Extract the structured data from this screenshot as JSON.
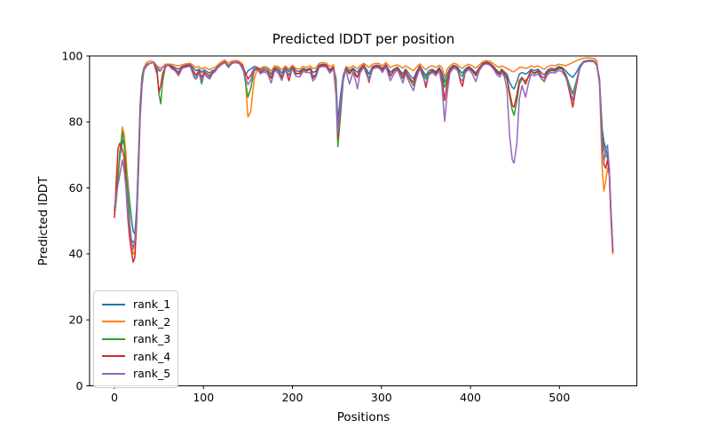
{
  "figure": {
    "title": "Predicted lDDT per position",
    "xlabel": "Positions",
    "ylabel": "Predicted lDDT"
  },
  "chart_data": {
    "type": "line",
    "title": "Predicted lDDT per position",
    "xlabel": "Positions",
    "ylabel": "Predicted lDDT",
    "xlim": [
      -28,
      587
    ],
    "ylim": [
      0,
      100
    ],
    "xticks": [
      0,
      100,
      200,
      300,
      400,
      500
    ],
    "yticks": [
      0,
      20,
      40,
      60,
      80,
      100
    ],
    "grid": false,
    "legend_position": "lower left",
    "x": [
      0,
      2,
      4,
      6,
      9,
      11,
      13,
      15,
      17,
      19,
      21,
      23,
      25,
      27,
      29,
      31,
      33,
      36,
      40,
      44,
      48,
      50,
      52,
      54,
      57,
      60,
      64,
      68,
      72,
      76,
      80,
      85,
      90,
      92,
      95,
      98,
      101,
      104,
      107,
      110,
      113,
      116,
      120,
      124,
      128,
      132,
      136,
      140,
      144,
      147,
      150,
      153,
      157,
      161,
      164,
      168,
      172,
      176,
      180,
      184,
      188,
      192,
      196,
      200,
      204,
      208,
      212,
      216,
      220,
      223,
      226,
      230,
      234,
      238,
      242,
      246,
      249,
      251,
      254,
      257,
      260,
      264,
      268,
      271,
      273,
      276,
      280,
      283,
      286,
      290,
      294,
      298,
      301,
      305,
      310,
      314,
      318,
      321,
      324,
      327,
      330,
      333,
      336,
      339,
      343,
      347,
      350,
      353,
      357,
      361,
      365,
      368,
      371,
      374,
      377,
      381,
      385,
      389,
      391,
      394,
      398,
      402,
      406,
      410,
      414,
      418,
      422,
      426,
      430,
      433,
      435,
      438,
      441,
      444,
      447,
      449,
      452,
      455,
      458,
      462,
      465,
      468,
      472,
      476,
      480,
      483,
      487,
      491,
      495,
      499,
      503,
      507,
      511,
      515,
      519,
      523,
      527,
      531,
      535,
      539,
      542,
      545,
      548,
      550,
      552,
      554,
      556,
      558,
      560
    ],
    "series": [
      {
        "name": "rank_1",
        "color": "#1f77b4",
        "values": [
          53,
          58,
          64,
          69,
          74.5,
          73,
          68,
          62,
          56,
          51,
          47,
          46,
          54,
          70,
          85,
          93,
          96,
          97.5,
          97.8,
          98,
          96.5,
          95.5,
          95.5,
          96.5,
          97,
          97.3,
          97,
          96.5,
          96,
          96.8,
          97.2,
          97.4,
          96,
          95.5,
          96,
          95,
          95.8,
          95.2,
          94.8,
          95.5,
          95.8,
          96.8,
          97.6,
          98.3,
          97,
          98,
          98.2,
          98,
          96,
          94,
          95.5,
          96,
          96.8,
          96.5,
          95.8,
          96.3,
          96,
          94.5,
          96.5,
          96.2,
          94.8,
          96.5,
          95.3,
          96.8,
          95.5,
          95.3,
          96.2,
          95.8,
          96.3,
          95,
          95.3,
          97.2,
          97.5,
          97.3,
          95.8,
          96.8,
          93,
          80,
          88,
          94,
          96.5,
          95.5,
          96.3,
          95.5,
          95,
          96.2,
          97.3,
          96,
          94.5,
          96.8,
          97.2,
          97,
          96.2,
          97.4,
          95,
          96,
          96.6,
          95.5,
          94.5,
          96,
          95,
          93.8,
          93,
          95,
          97,
          95.3,
          94,
          95.5,
          96,
          95.2,
          96.5,
          95,
          92,
          94.5,
          96.2,
          97.2,
          96.8,
          95.2,
          94.8,
          96,
          96.8,
          96,
          94.8,
          96.5,
          97.8,
          98.2,
          97.8,
          96.8,
          95.5,
          95,
          96,
          95.2,
          94.5,
          92,
          90.5,
          90,
          92,
          94.5,
          95,
          94.5,
          95,
          96,
          95.5,
          96,
          94.8,
          94.3,
          95.8,
          96.3,
          96,
          96.8,
          96.5,
          95.5,
          94.3,
          93.5,
          95,
          97,
          98.3,
          98.6,
          98.7,
          98.5,
          97.5,
          93,
          78,
          74,
          72,
          70,
          66,
          52,
          41
        ]
      },
      {
        "name": "rank_2",
        "color": "#ff7f0e",
        "values": [
          52,
          56,
          62,
          70,
          78.5,
          76,
          70,
          60,
          51,
          44,
          40,
          40.5,
          50,
          66,
          84,
          94,
          96.5,
          98,
          98.5,
          98.2,
          97,
          96.5,
          96.5,
          96.5,
          97.5,
          97.5,
          97.5,
          97.2,
          97,
          97.3,
          97.6,
          97.8,
          96.8,
          96.5,
          96.8,
          96,
          96.5,
          96.2,
          95.8,
          96.3,
          96.5,
          97.3,
          98.2,
          98.8,
          97.8,
          98.5,
          98.7,
          98.4,
          97.5,
          93,
          81.5,
          83,
          93,
          96.5,
          96.2,
          96.8,
          96.5,
          95.5,
          97,
          96.8,
          95.8,
          97,
          96,
          97.2,
          96.2,
          96,
          96.8,
          96.5,
          97,
          96.2,
          96.3,
          97.8,
          98,
          97.8,
          96.8,
          97.3,
          91,
          76,
          84,
          93,
          96.8,
          96.3,
          97,
          96.5,
          96.2,
          97,
          97.8,
          97.2,
          96.5,
          97.5,
          97.8,
          97.6,
          97,
          98,
          96.5,
          97,
          97.3,
          96.8,
          96.3,
          97,
          96.5,
          96,
          95.5,
          96.5,
          97.6,
          96.5,
          95.8,
          96.6,
          97,
          96.5,
          97.2,
          96.5,
          93.5,
          96,
          97,
          97.8,
          97.5,
          96.5,
          96.2,
          97,
          97.5,
          97,
          96.3,
          97.3,
          98.3,
          98.6,
          98.4,
          97.6,
          96.8,
          96.5,
          97,
          96.6,
          96.2,
          95.8,
          95.3,
          95.2,
          95.8,
          96.5,
          96.6,
          96.2,
          96.5,
          97,
          96.6,
          97,
          96.3,
          96,
          96.8,
          97.2,
          97,
          97.5,
          97.3,
          97,
          97.5,
          98,
          98.5,
          99,
          99.3,
          99.4,
          99.4,
          99.2,
          98.5,
          91,
          66,
          59,
          62,
          66,
          64,
          50,
          40
        ]
      },
      {
        "name": "rank_3",
        "color": "#2ca02c",
        "values": [
          52,
          57,
          64,
          71,
          77,
          73,
          66,
          57,
          49,
          44.5,
          43.5,
          44,
          53,
          69,
          86,
          94,
          96,
          97,
          97.8,
          98,
          95.5,
          88.5,
          85.5,
          92,
          96.5,
          97.3,
          96.5,
          95.8,
          94.5,
          96.5,
          96.8,
          97,
          94,
          93.5,
          95,
          91.5,
          94.8,
          93.8,
          93.5,
          94.8,
          95.2,
          96.5,
          97.4,
          98.1,
          96.5,
          97.8,
          98,
          97.8,
          96.8,
          92.5,
          87.5,
          90,
          95.5,
          96,
          95.2,
          95.8,
          95.3,
          93.5,
          96,
          95.5,
          93.8,
          96,
          94.3,
          96.3,
          94.8,
          94.5,
          95.8,
          95.4,
          96,
          93.8,
          94.3,
          96.8,
          97.2,
          97,
          95.3,
          96.4,
          88,
          72.5,
          82,
          92.5,
          96,
          94.5,
          95.8,
          94.5,
          93.5,
          95.5,
          97,
          95.5,
          93,
          96.4,
          96.8,
          96.6,
          95.6,
          97,
          93.8,
          95.4,
          96.2,
          94.8,
          93.2,
          95.3,
          93.8,
          92.3,
          91,
          94,
          96.6,
          94.5,
          93,
          94.8,
          95.5,
          94.6,
          96,
          93.5,
          90.5,
          93,
          95.6,
          96.8,
          96.3,
          94.3,
          93.8,
          95.5,
          96.4,
          95.4,
          94,
          96,
          97.4,
          97.8,
          97.4,
          96.4,
          94.8,
          94.3,
          95.5,
          94.5,
          93,
          88,
          83.5,
          82,
          86,
          91.5,
          93,
          92.5,
          93.5,
          95.3,
          94.6,
          95.3,
          93,
          92.2,
          95,
          95.6,
          95.4,
          96.2,
          96,
          94.5,
          91.5,
          88.5,
          92.5,
          96.5,
          98,
          98.3,
          98.4,
          98.2,
          97,
          92,
          76,
          72,
          70,
          69,
          65,
          52,
          41.5
        ]
      },
      {
        "name": "rank_4",
        "color": "#d62728",
        "values": [
          51,
          62,
          72,
          73.5,
          71.5,
          69,
          60,
          51,
          45,
          41,
          37.5,
          39,
          50,
          67,
          85,
          92,
          95.5,
          97,
          97.8,
          98,
          94.5,
          89,
          91,
          94.5,
          96.5,
          97.3,
          96.8,
          96,
          95,
          96.6,
          97,
          97.2,
          94.8,
          94.3,
          95.5,
          93.5,
          95.2,
          94.5,
          94,
          95,
          95.4,
          96.6,
          97.5,
          98.2,
          96.8,
          97.9,
          98.1,
          97.9,
          97,
          95,
          93,
          94,
          96.2,
          96.2,
          95,
          95.8,
          95.2,
          93.2,
          96.2,
          95.5,
          93.2,
          96.2,
          92.5,
          96.5,
          94.5,
          94.8,
          96,
          95.6,
          96.2,
          93.3,
          94,
          97,
          97.3,
          97.2,
          95.6,
          96.6,
          89,
          75.2,
          84,
          93,
          96.2,
          94.8,
          96,
          94,
          93.5,
          95.8,
          97.2,
          95,
          92,
          96.6,
          97,
          96.8,
          95.8,
          97.2,
          94,
          95.6,
          96.4,
          95,
          93.5,
          95.5,
          94,
          92.8,
          92,
          94.3,
          96.8,
          93.8,
          90.5,
          94.3,
          95.6,
          94.8,
          96.2,
          93,
          86.5,
          92,
          95.8,
          97,
          96.5,
          92,
          90.8,
          95,
          96.6,
          95.6,
          94.3,
          96.2,
          97.6,
          98,
          97.6,
          96.6,
          95,
          94.6,
          95.8,
          94.8,
          93.5,
          89,
          85,
          84.5,
          88,
          92.5,
          93.5,
          91.5,
          93.8,
          95.5,
          94.8,
          95.5,
          93.8,
          93.3,
          95.3,
          95.8,
          95.6,
          96.4,
          96.2,
          94,
          89.5,
          84.5,
          91,
          96.3,
          98.1,
          98.4,
          98.5,
          98.3,
          97.2,
          92.5,
          74,
          67,
          66,
          68.5,
          64,
          51,
          40.5
        ]
      },
      {
        "name": "rank_5",
        "color": "#9467bd",
        "values": [
          54,
          58,
          61,
          64,
          68.5,
          65,
          60,
          52,
          48,
          44,
          41.5,
          44,
          51,
          65,
          82,
          91,
          95.5,
          97.2,
          97.8,
          98,
          96.5,
          96,
          95.5,
          96.5,
          96.8,
          97.3,
          96.2,
          95.5,
          94,
          96.2,
          96.6,
          96.9,
          93.2,
          93,
          94.8,
          92.5,
          94.6,
          93.6,
          93,
          94.5,
          95.3,
          96.4,
          97.3,
          98,
          96.6,
          97.7,
          98,
          97.7,
          96.5,
          93.5,
          91.3,
          92.5,
          95.8,
          95.8,
          94.6,
          95.2,
          94.6,
          91.8,
          95.6,
          94.8,
          92.6,
          95.8,
          94,
          96,
          93.8,
          93.6,
          95.3,
          95,
          95,
          92.4,
          93.4,
          96.5,
          96.8,
          96.6,
          94.8,
          96,
          90,
          76.5,
          85,
          93,
          95.8,
          91.5,
          95,
          92.5,
          90,
          94.8,
          96.6,
          94.5,
          92.5,
          96,
          96.5,
          96.2,
          95,
          96.7,
          92.5,
          94.6,
          95.8,
          93.8,
          91.8,
          94.6,
          92.8,
          91,
          89.5,
          93,
          96.2,
          93.5,
          91.5,
          94.2,
          95,
          94,
          95.5,
          91,
          80.2,
          89,
          94.8,
          96.4,
          95.8,
          93,
          92.4,
          94.8,
          96,
          94.6,
          92.2,
          95.6,
          97.2,
          97.6,
          97.2,
          96,
          94.2,
          93.6,
          95,
          93.8,
          90,
          76,
          68.5,
          67.5,
          73,
          87,
          91,
          87.5,
          91.5,
          94.5,
          94,
          94.6,
          93,
          92.5,
          94.5,
          95,
          94.8,
          95.6,
          95.2,
          93.5,
          90.5,
          86.5,
          92,
          96.5,
          98,
          98.3,
          98.4,
          98.2,
          97,
          92,
          72,
          68,
          71.5,
          73,
          66,
          53,
          42
        ]
      }
    ]
  }
}
